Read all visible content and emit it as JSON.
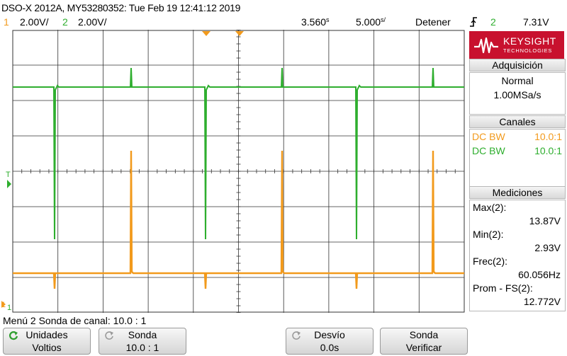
{
  "title": "DSO-X 2012A, MY53280352: Tue Feb 19 12:41:12 2019",
  "status": {
    "ch1_num": "1",
    "ch1_scale": "2.00V/",
    "ch2_num": "2",
    "ch2_scale": "2.00V/",
    "delay": "3.560",
    "delay_unit": "s",
    "timebase": "5.000",
    "timebase_unit": "s/",
    "run_state": "Detener",
    "trigger_icon": "trigger-rising-edge-icon",
    "trigger_channel": "2",
    "trigger_level": "7.31V"
  },
  "colors": {
    "ch1": "#f29a1c",
    "ch2": "#2eae2e",
    "brand": "#c8112e",
    "grid": "#333333"
  },
  "logo": {
    "name": "KEYSIGHT",
    "sub": "TECHNOLOGIES"
  },
  "panel": {
    "acquisition": {
      "header": "Adquisición",
      "mode": "Normal",
      "rate": "1.00MSa/s"
    },
    "channels": {
      "header": "Canales",
      "rows": [
        {
          "coupling": "DC BW",
          "probe": "10.0:1"
        },
        {
          "coupling": "DC BW",
          "probe": "10.0:1"
        }
      ]
    },
    "measurements": {
      "header": "Mediciones",
      "items": [
        {
          "label": "Max(2):",
          "value": "13.87V"
        },
        {
          "label": "Min(2):",
          "value": "2.93V"
        },
        {
          "label": "Frec(2):",
          "value": "60.056Hz"
        },
        {
          "label": "Prom - FS(2):",
          "value": "12.772V"
        }
      ]
    }
  },
  "markers": {
    "trigger_left": "T",
    "ch1_ground": "1",
    "ch2_marker": "1"
  },
  "menu": {
    "title": "Menú 2 Sonda de canal: 10.0 : 1",
    "softkeys": [
      {
        "label": "Unidades",
        "value": "Voltios",
        "icon": "rotate-arrow-icon"
      },
      {
        "label": "Sonda",
        "value": "10.0 : 1",
        "icon": "rotate-arrow-icon"
      },
      {
        "label": "Desvío",
        "value": "0.0s",
        "icon": "rotate-arrow-icon"
      },
      {
        "label": "Sonda",
        "value": "Verificar",
        "icon": ""
      }
    ]
  }
}
